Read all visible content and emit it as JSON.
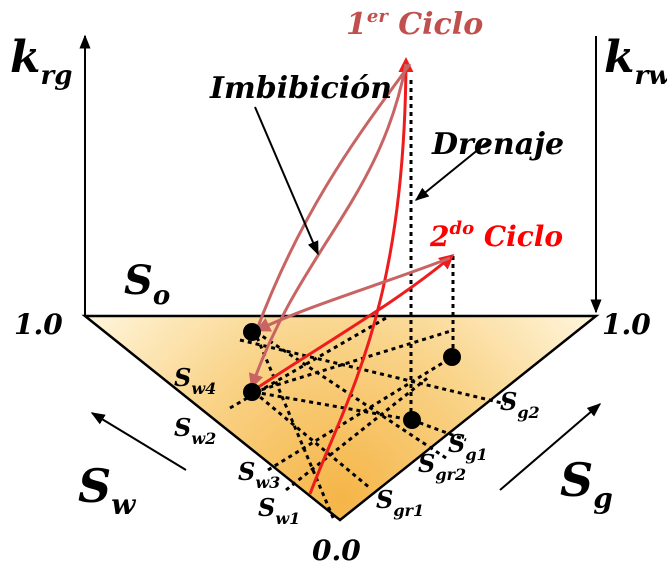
{
  "axes": {
    "left": {
      "main": "k",
      "sub": "rg"
    },
    "right": {
      "main": "k",
      "sub": "rw"
    }
  },
  "apex_labels": {
    "top_left": "1.0",
    "top_right": "1.0",
    "bottom": "0.0",
    "oil": {
      "main": "S",
      "sub": "o"
    }
  },
  "side_labels": {
    "water": {
      "main": "S",
      "sub": "w"
    },
    "gas": {
      "main": "S",
      "sub": "g"
    }
  },
  "tick_labels": {
    "sw4": {
      "main": "S",
      "sub": "w4"
    },
    "sw2": {
      "main": "S",
      "sub": "w2"
    },
    "sw3": {
      "main": "S",
      "sub": "w3"
    },
    "sw1": {
      "main": "S",
      "sub": "w1"
    },
    "sg2": {
      "main": "S",
      "sub": "g2"
    },
    "sg1": {
      "main": "S",
      "sub": "g1"
    },
    "sgr2": {
      "main": "S",
      "sub": "gr2"
    },
    "sgr1": {
      "main": "S",
      "sub": "gr1"
    }
  },
  "annotations": {
    "imbibicion": "Imbibición",
    "drenaje": "Drenaje",
    "cycle1": {
      "num": "1",
      "sup": "er",
      "text": " Ciclo"
    },
    "cycle2": {
      "num": "2",
      "sup": "do",
      "text": " Ciclo"
    }
  },
  "colors": {
    "fill_light": "#fff3d6",
    "fill_dark": "#f5b547",
    "cycle1": "#c0504d",
    "cycle2": "#ff0000",
    "imbibition_curve": "#c86464",
    "drainage_curve": "#ee1c1c"
  }
}
